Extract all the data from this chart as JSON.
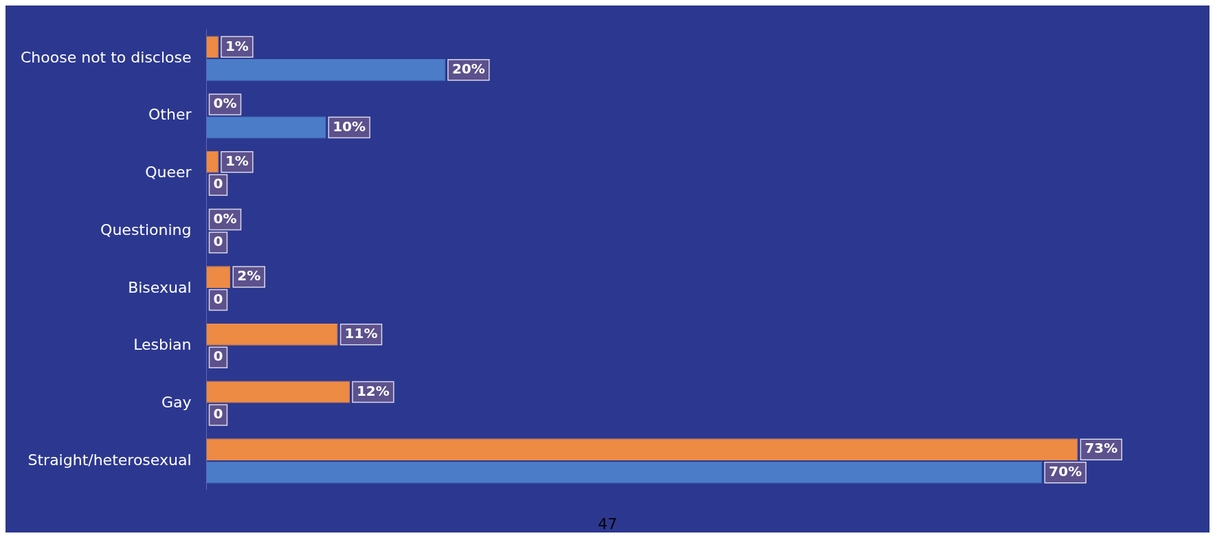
{
  "chart_data": {
    "type": "bar",
    "orientation": "horizontal",
    "categories": [
      "Choose not to disclose",
      "Other",
      "Queer",
      "Questioning",
      "Bisexual",
      "Lesbian",
      "Gay",
      "Straight/heterosexual"
    ],
    "series": [
      {
        "color": "#ed8b45",
        "values": [
          1,
          0,
          1,
          0,
          2,
          11,
          12,
          73
        ],
        "value_labels": [
          "1%",
          "0%",
          "1%",
          "0%",
          "2%",
          "11%",
          "12%",
          "73%"
        ]
      },
      {
        "color": "#4a7cc7",
        "values": [
          20,
          10,
          0,
          0,
          0,
          0,
          0,
          70
        ],
        "value_labels": [
          "20%",
          "10%",
          "0",
          "0",
          "0",
          "0",
          "0",
          "70%"
        ]
      }
    ],
    "grid": false,
    "legend": false,
    "tick_labels": "y",
    "annotations": [
      "47"
    ]
  }
}
